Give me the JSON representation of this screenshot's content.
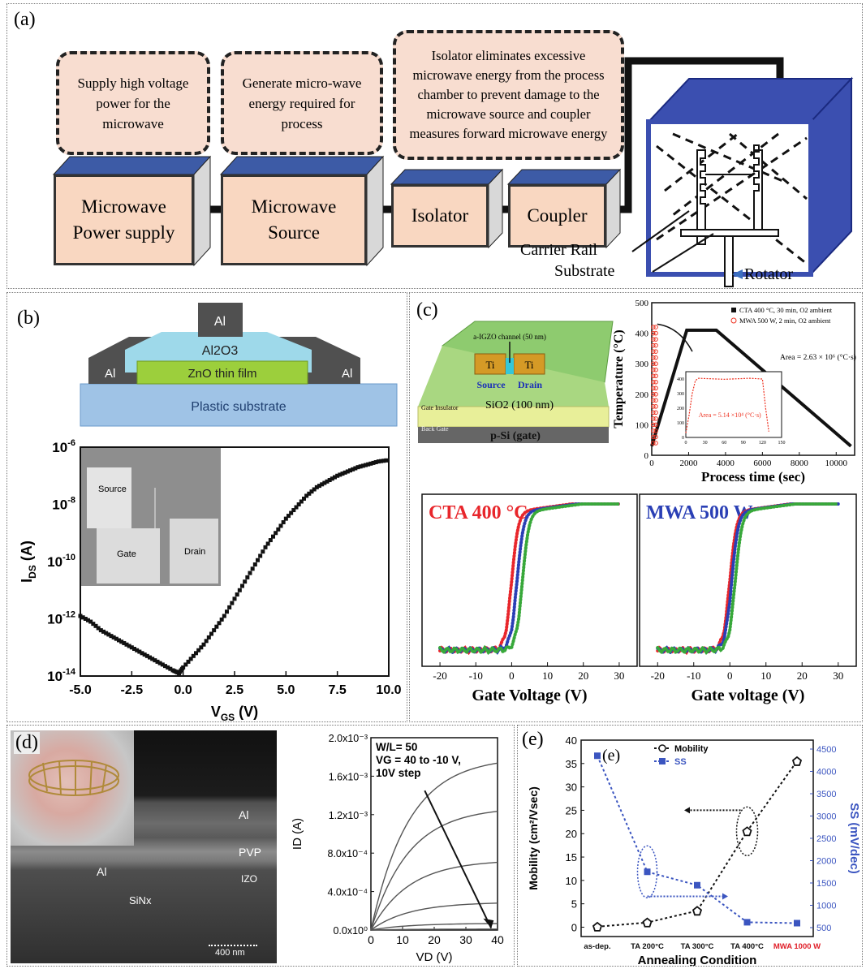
{
  "panel_a": {
    "label": "(a)",
    "bubbles": [
      "Supply high voltage power for the microwave",
      "Generate micro-wave energy required for process",
      "Isolator eliminates excessive microwave energy from the process chamber to prevent damage to the microwave source and coupler measures forward microwave energy"
    ],
    "boxes": [
      "Microwave Power supply",
      "Microwave Source",
      "Isolator",
      "Coupler"
    ],
    "chamber_labels": {
      "rail": "Carrier Rail",
      "substrate": "Substrate",
      "rotator": "Rotator"
    },
    "colors": {
      "box_fill": "#f9d7c1",
      "box_top": "#3d5ba6",
      "chamber_edge": "#3b4fb0"
    }
  },
  "panel_b": {
    "label": "(b)",
    "device": {
      "top": "Al",
      "dielectric": "Al2O3",
      "left": "Al",
      "right": "Al",
      "film": "ZnO thin film",
      "substrate": "Plastic substrate"
    },
    "inset_labels": [
      "Source",
      "Gate",
      "Drain"
    ],
    "chart_data": {
      "type": "scatter",
      "xlabel": "VGS (V)",
      "ylabel": "IDS (A)",
      "xlim": [
        -5.0,
        10.0
      ],
      "ylim_log": [
        -14,
        -6
      ],
      "x_ticks": [
        "-5.0",
        "-2.5",
        "0.0",
        "2.5",
        "5.0",
        "7.5",
        "10.0"
      ],
      "y_ticks": [
        "10-14",
        "10-12",
        "10-10",
        "10-8",
        "10-6"
      ],
      "series": [
        {
          "x": [
            -5.0,
            -4.5,
            -4.0,
            -3.5,
            -3.0,
            -2.5,
            -2.0,
            -1.5,
            -1.0,
            -0.5,
            -0.2,
            0.0,
            0.5,
            1.0,
            1.5,
            2.0,
            2.5,
            3.0,
            3.5,
            4.0,
            4.5,
            5.0,
            5.5,
            6.0,
            6.5,
            7.0,
            7.5,
            8.0,
            8.5,
            9.0,
            9.5,
            10.0
          ],
          "log_y": [
            -11.9,
            -12.1,
            -12.4,
            -12.6,
            -12.8,
            -13.0,
            -13.2,
            -13.4,
            -13.6,
            -13.8,
            -13.9,
            -13.7,
            -13.3,
            -12.9,
            -12.4,
            -11.9,
            -11.3,
            -10.7,
            -10.1,
            -9.5,
            -9.0,
            -8.5,
            -8.1,
            -7.7,
            -7.4,
            -7.2,
            -7.0,
            -6.85,
            -6.7,
            -6.6,
            -6.5,
            -6.45
          ]
        }
      ]
    }
  },
  "panel_c": {
    "label": "(c)",
    "device": {
      "channel": "a-IGZO channel (50 nm)",
      "ti_left": "Ti",
      "ti_right": "Ti",
      "source": "Source",
      "drain": "Drain",
      "gate_insulator": "Gate Insulator",
      "sio2": "SiO2 (100 nm)",
      "back_gate": "Back Gate",
      "psi": "p-Si (gate)"
    },
    "temp_chart": {
      "type": "line",
      "xlabel": "Process time (sec)",
      "ylabel": "Temperature (°C)",
      "xlim": [
        0,
        11000
      ],
      "ylim": [
        0,
        500
      ],
      "x_ticks": [
        "0",
        "2000",
        "4000",
        "6000",
        "8000",
        "10000"
      ],
      "y_ticks": [
        "0",
        "100",
        "200",
        "300",
        "400",
        "500"
      ],
      "legend": [
        "CTA 400 °C, 30 min, O2 ambient",
        "MWA 500 W, 2 min, O2 ambient"
      ],
      "area_cta": "Area = 2.63 × 10⁶ (°C·s)",
      "area_mwa": "Area = 5.14 ×10⁴ (°C·s)",
      "cta": {
        "x": [
          0,
          1900,
          3500,
          10800
        ],
        "y": [
          30,
          410,
          410,
          30
        ]
      },
      "inset_x_ticks": [
        "0",
        "30",
        "60",
        "90",
        "120",
        "150"
      ],
      "inset_y_ticks": [
        "0",
        "100",
        "200",
        "300",
        "400"
      ]
    },
    "transfer": {
      "left_title": "CTA 400 °C",
      "right_title": "MWA 500 W",
      "left_xlabel": "Gate Voltage (V)",
      "right_xlabel": "Gate voltage (V)",
      "x_ticks": [
        "-20",
        "-10",
        "0",
        "10",
        "20",
        "30"
      ],
      "colors": [
        "#e8262b",
        "#2a3fb5",
        "#38a83a"
      ]
    }
  },
  "panel_d": {
    "label": "(d)",
    "sem_labels": {
      "al_top": "Al",
      "pvp": "PVP",
      "izo": "IZO",
      "al_bottom": "Al",
      "sinx": "SiNx",
      "scale": "400 nm"
    },
    "chart_data": {
      "type": "line",
      "annotation": [
        "W/L= 50",
        "VG = 40 to -10 V,",
        "10V step"
      ],
      "xlabel": "VD (V)",
      "ylabel": "ID (A)",
      "xlim": [
        0,
        40
      ],
      "ylim": [
        0,
        0.002
      ],
      "x_ticks": [
        "0",
        "10",
        "20",
        "30",
        "40"
      ],
      "y_ticks": [
        "0.0x10⁰",
        "4.0x10⁻⁴",
        "8.0x10⁻⁴",
        "1.2x10⁻³",
        "1.6x10⁻³",
        "2.0x10⁻³"
      ],
      "series_sat": [
        0.0018,
        0.00128,
        0.00073,
        0.00029,
        7e-05,
        1e-05
      ]
    }
  },
  "panel_e": {
    "label": "(e)",
    "inner_label": "(e)",
    "chart_data": {
      "type": "line",
      "categories": [
        "as-dep.",
        "TA 200°C",
        "TA 300°C",
        "TA 400°C",
        "MWA 1000 W"
      ],
      "series": [
        {
          "name": "Mobility",
          "values": [
            0.1,
            1.0,
            3.5,
            20.5,
            35.5
          ]
        },
        {
          "name": "SS",
          "values": [
            4350,
            1750,
            1450,
            620,
            600
          ]
        }
      ],
      "xlabel": "Annealing Condition",
      "ylabel_left": "Mobility (cm²/Vsec)",
      "ylabel_right": "SS (mV/dec)",
      "ylim_left": [
        -2,
        40
      ],
      "ylim_right": [
        300,
        4700
      ],
      "left_ticks": [
        "0",
        "5",
        "10",
        "15",
        "20",
        "25",
        "30",
        "35",
        "40"
      ],
      "right_ticks": [
        "500",
        "1000",
        "1500",
        "2000",
        "2500",
        "3000",
        "3500",
        "4000",
        "4500"
      ],
      "colors": {
        "mobility": "#000000",
        "ss": "#3b55c0",
        "highlight": "#e0202a"
      }
    }
  }
}
